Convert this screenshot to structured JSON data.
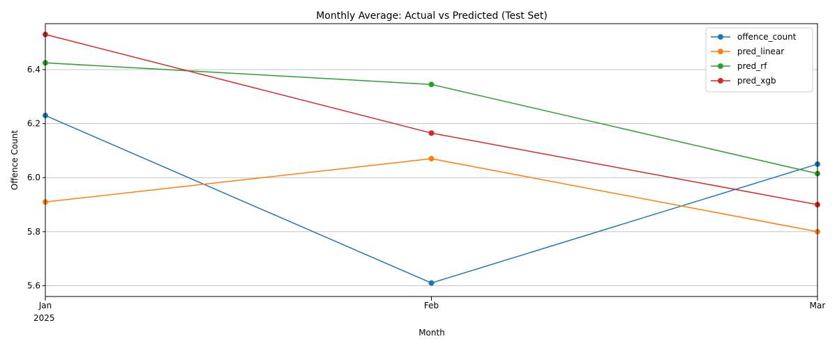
{
  "chart_data": {
    "type": "line",
    "title": "Monthly Average: Actual vs Predicted (Test Set)",
    "xlabel": "Month",
    "ylabel": "Offence Count",
    "categories": [
      "Jan",
      "Feb",
      "Mar"
    ],
    "year_label": "2025",
    "ylim": [
      5.56,
      6.57
    ],
    "yticks": [
      5.6,
      5.8,
      6.0,
      6.2,
      6.4
    ],
    "ytick_labels": [
      "5.6",
      "5.8",
      "6.0",
      "6.2",
      "6.4"
    ],
    "grid": "y-major",
    "legend_position": "top-right",
    "series": [
      {
        "name": "offence_count",
        "color": "#1f77b4",
        "values": [
          6.23,
          5.61,
          6.05
        ]
      },
      {
        "name": "pred_linear",
        "color": "#ff7f0e",
        "values": [
          5.91,
          6.07,
          5.8
        ]
      },
      {
        "name": "pred_rf",
        "color": "#2ca02c",
        "values": [
          6.425,
          6.345,
          6.015
        ]
      },
      {
        "name": "pred_xgb",
        "color": "#d62728",
        "values": [
          6.53,
          6.165,
          5.9
        ]
      }
    ]
  }
}
